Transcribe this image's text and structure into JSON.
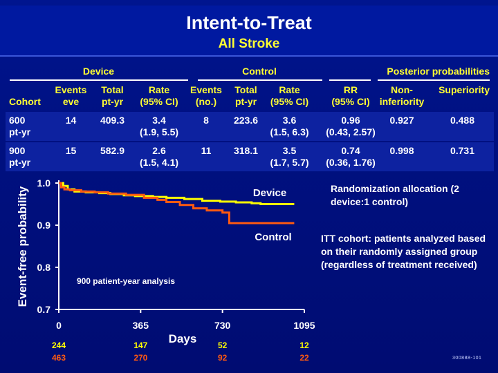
{
  "title": "Intent-to-Treat",
  "subtitle": "All Stroke",
  "table": {
    "groups": {
      "device": "Device",
      "control": "Control",
      "posterior": "Posterior probabilities"
    },
    "headers": {
      "cohort": "Cohort",
      "dev_events_1": "Events",
      "dev_events_2": "eve",
      "dev_total_1": "Total",
      "dev_total_2": "pt-yr",
      "dev_rate_1": "Rate",
      "dev_rate_2": "(95% CI)",
      "ctl_events_1": "Events",
      "ctl_events_2": "(no.)",
      "ctl_total_1": "Total",
      "ctl_total_2": "pt-yr",
      "ctl_rate_1": "Rate",
      "ctl_rate_2": "(95% CI)",
      "rr_1": "RR",
      "rr_2": "(95% CI)",
      "noninf_1": "Non-",
      "noninf_2": "inferiority",
      "superiority": "Superiority"
    },
    "rows": [
      {
        "cohort_1": "600",
        "cohort_2": "pt-yr",
        "dev_events": "14",
        "dev_total": "409.3",
        "dev_rate": "3.4",
        "dev_ci": "(1.9, 5.5)",
        "ctl_events": "8",
        "ctl_total": "223.6",
        "ctl_rate": "3.6",
        "ctl_ci": "(1.5, 6.3)",
        "rr": "0.96",
        "rr_ci": "(0.43, 2.57)",
        "noninf": "0.927",
        "superiority": "0.488"
      },
      {
        "cohort_1": "900",
        "cohort_2": "pt-yr",
        "dev_events": "15",
        "dev_total": "582.9",
        "dev_rate": "2.6",
        "dev_ci": "(1.5, 4.1)",
        "ctl_events": "11",
        "ctl_total": "318.1",
        "ctl_rate": "3.5",
        "ctl_ci": "(1.7, 5.7)",
        "rr": "0.74",
        "rr_ci": "(0.36, 1.76)",
        "noninf": "0.998",
        "superiority": "0.731"
      }
    ]
  },
  "chart_data": {
    "type": "line",
    "title": "",
    "xlabel": "Days",
    "ylabel": "Event-free probability",
    "xlim": [
      0,
      1095
    ],
    "ylim": [
      0.7,
      1.0
    ],
    "x_ticks": [
      "0",
      "365",
      "730",
      "1095"
    ],
    "y_ticks": [
      "1.0",
      "0.9",
      "0.8",
      "0.7"
    ],
    "annotation": "900 patient-year analysis",
    "series": [
      {
        "name": "Device",
        "color": "#ffff00",
        "x": [
          0,
          20,
          40,
          70,
          120,
          180,
          230,
          290,
          340,
          420,
          480,
          560,
          640,
          720,
          790,
          860,
          900,
          1050
        ],
        "y": [
          1.0,
          0.993,
          0.985,
          0.98,
          0.978,
          0.976,
          0.974,
          0.971,
          0.969,
          0.967,
          0.965,
          0.962,
          0.958,
          0.956,
          0.954,
          0.952,
          0.95,
          0.95
        ]
      },
      {
        "name": "Control",
        "color": "#ff5a10",
        "x": [
          0,
          10,
          25,
          50,
          100,
          160,
          220,
          300,
          380,
          440,
          480,
          540,
          600,
          660,
          730,
          760,
          850,
          1050
        ],
        "y": [
          1.0,
          0.99,
          0.985,
          0.983,
          0.98,
          0.978,
          0.975,
          0.972,
          0.965,
          0.96,
          0.955,
          0.948,
          0.94,
          0.935,
          0.93,
          0.905,
          0.905,
          0.905
        ]
      }
    ],
    "at_risk": {
      "device": [
        "244",
        "147",
        "52",
        "12"
      ],
      "control": [
        "463",
        "270",
        "92",
        "22"
      ]
    },
    "at_risk_colors": {
      "device": "#ffff00",
      "control": "#ff5a10"
    },
    "grid": false,
    "legend": "inline labels"
  },
  "notes": {
    "randomization": "Randomization allocation (2 device:1 control)",
    "itt": "ITT cohort: patients analyzed based on their randomly assigned group (regardless of treatment received)"
  },
  "footer_code": "300888-101"
}
